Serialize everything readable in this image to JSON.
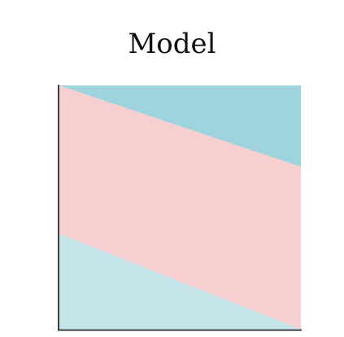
{
  "title": "Model",
  "colors": {
    "top_region": "#9ed4dd",
    "middle_band": "#f6d0d1",
    "bottom_region": "#c5e4e9",
    "axis": "#111111"
  }
}
